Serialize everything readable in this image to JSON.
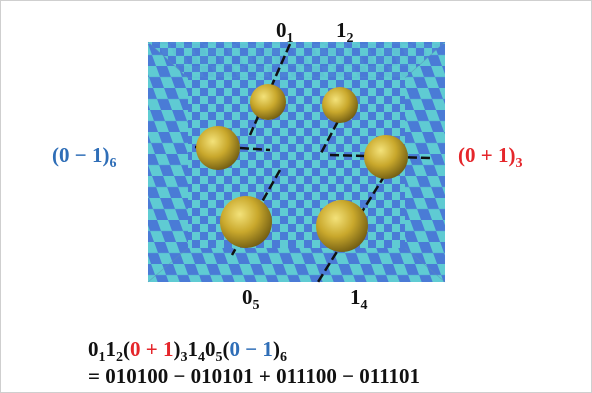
{
  "labels": [
    {
      "text": "0",
      "sub": "1"
    },
    {
      "text": "1",
      "sub": "2"
    },
    {
      "text": "(0 − 1)",
      "sub": "6"
    },
    {
      "text": "(0 + 1)",
      "sub": "3"
    },
    {
      "text": "0",
      "sub": "5"
    },
    {
      "text": "1",
      "sub": "4"
    }
  ],
  "equation": {
    "line1": [
      {
        "text": "0",
        "sub": "1"
      },
      {
        "text": "1",
        "sub": "2"
      },
      {
        "open": "(",
        "text": "0 + 1",
        "close": ")",
        "sub": "3"
      },
      {
        "text": "1",
        "sub": "4"
      },
      {
        "text": "0",
        "sub": "5"
      },
      {
        "open": "(",
        "text": "0 − 1",
        "close": ")",
        "sub": "6"
      }
    ],
    "line2": "= 010100 − 010101 + 011100 − 011101"
  }
}
